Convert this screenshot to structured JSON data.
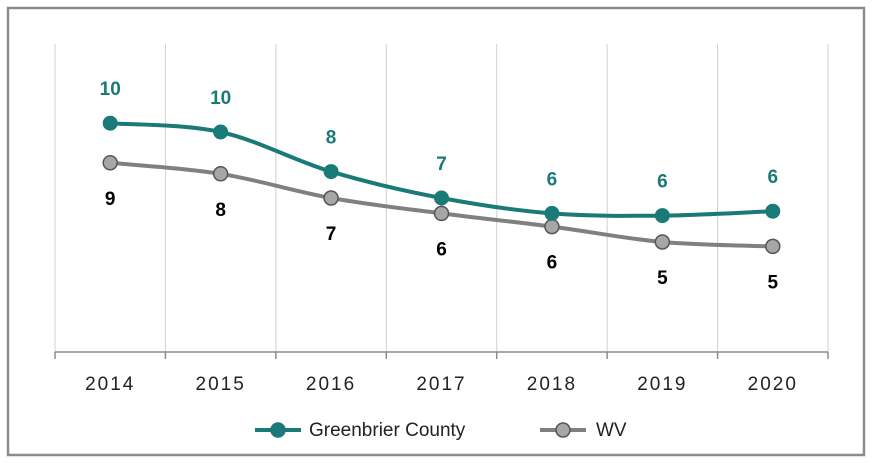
{
  "chart_data": {
    "type": "line",
    "categories": [
      "2014",
      "2015",
      "2016",
      "2017",
      "2018",
      "2019",
      "2020"
    ],
    "series": [
      {
        "name": "Greenbrier County",
        "color": "#1a7a78",
        "label_color": "#1a7a78",
        "marker_fill": "#1a7a78",
        "values": [
          10.4,
          10.0,
          8.2,
          7.0,
          6.3,
          6.2,
          6.4
        ],
        "value_labels": [
          "10",
          "10",
          "8",
          "7",
          "6",
          "6",
          "6"
        ]
      },
      {
        "name": "WV",
        "color": "#808080",
        "label_color": "#000000",
        "marker_fill": "#a6a6a6",
        "values": [
          8.6,
          8.1,
          7.0,
          6.3,
          5.7,
          5.0,
          4.8
        ],
        "value_labels": [
          "9",
          "8",
          "7",
          "6",
          "6",
          "5",
          "5"
        ]
      }
    ],
    "ylim": [
      0,
      14
    ],
    "grid": true,
    "legend": "bottom"
  }
}
